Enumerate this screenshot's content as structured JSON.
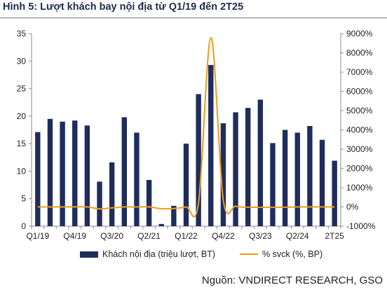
{
  "title": "Hình 5: Lượt khách bay nội địa từ Q1/19 đến 2T25",
  "source": "Nguồn: VNDIRECT RESEARCH, GSO",
  "colors": {
    "bar": "#1f2d5c",
    "line": "#f09a1f",
    "title": "#1f2d4a"
  },
  "chart_data": {
    "type": "bar",
    "categories": [
      "Q1/19",
      "Q2/19",
      "Q3/19",
      "Q4/19",
      "Q1/20",
      "Q2/20",
      "Q3/20",
      "Q4/20",
      "Q1/21",
      "Q2/21",
      "Q3/21",
      "Q4/21",
      "Q1/22",
      "Q2/22",
      "Q3/22",
      "Q4/22",
      "Q1/23",
      "Q2/23",
      "Q3/23",
      "Q4/23",
      "Q1/24",
      "Q2/24",
      "Q3/24",
      "Q4/24",
      "2T25"
    ],
    "x_tick_labels": [
      "Q1/19",
      "Q4/19",
      "Q3/20",
      "Q2/21",
      "Q1/22",
      "Q4/22",
      "Q3/23",
      "Q2/24",
      "2T25"
    ],
    "series": [
      {
        "name": "Khách nội địa (triệu lượt, BT)",
        "type": "bar",
        "axis": "left",
        "values": [
          17.1,
          19.5,
          19.0,
          19.2,
          18.3,
          8.1,
          11.6,
          19.8,
          17.0,
          8.4,
          0.4,
          3.7,
          15.0,
          24.0,
          29.3,
          18.7,
          20.7,
          21.5,
          23.0,
          15.1,
          17.5,
          17.0,
          18.2,
          15.7,
          11.9
        ]
      },
      {
        "name": "% svck (%, BP)",
        "type": "line",
        "axis": "right",
        "values": [
          0,
          0,
          0,
          0,
          0,
          -100,
          -50,
          0,
          0,
          0,
          -90,
          -80,
          0,
          190,
          8800,
          380,
          40,
          -10,
          -20,
          -20,
          -15,
          0,
          0,
          0,
          0
        ]
      }
    ],
    "y_left": {
      "min": 0,
      "max": 35,
      "ticks": [
        "0",
        "5",
        "10",
        "15",
        "20",
        "25",
        "30",
        "35"
      ]
    },
    "y_right": {
      "min": -1000,
      "max": 9000,
      "ticks": [
        "-1000%",
        "0%",
        "1000%",
        "2000%",
        "3000%",
        "4000%",
        "5000%",
        "6000%",
        "7000%",
        "8000%",
        "9000%"
      ]
    },
    "grid": false,
    "legend_position": "bottom"
  }
}
